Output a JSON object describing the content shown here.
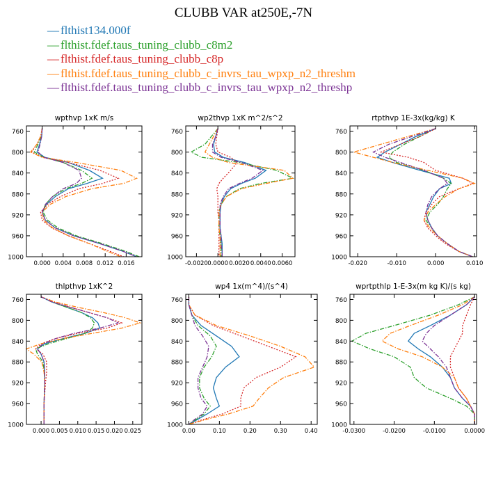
{
  "title": "CLUBB VAR at250E,-7N",
  "legend": [
    {
      "label": "flthist134.000f",
      "color": "#1f77b4",
      "dash": "solid"
    },
    {
      "label": "flthist.fdef.taus_tuning_clubb_c8m2",
      "color": "#2ca02c",
      "dash": "dashdot"
    },
    {
      "label": "flthist.fdef.taus_tuning_clubb_c8p",
      "color": "#d62728",
      "dash": "dot"
    },
    {
      "label": "flthist.fdef.taus_tuning_clubb_c_invrs_tau_wpxp_n2_threshm",
      "color": "#ff7f0e",
      "dash": "dashdot"
    },
    {
      "label": "flthist.fdef.taus_tuning_clubb_c_invrs_tau_wpxp_n2_threshp",
      "color": "#7b3294",
      "dash": "dashdot"
    }
  ],
  "chart_data": [
    {
      "type": "line",
      "title": "wpthvp   1xK m/s",
      "xlim": [
        -0.003,
        0.019
      ],
      "xticks": [
        0.0,
        0.004,
        0.008,
        0.012,
        0.016
      ],
      "xticklabels": [
        "0.000",
        "0.004",
        "0.008",
        "0.012",
        "0.016"
      ],
      "ylim": [
        1000,
        750
      ],
      "yticks": [
        760,
        800,
        840,
        880,
        920,
        960,
        1000
      ],
      "y": [
        755,
        770,
        785,
        800,
        810,
        820,
        835,
        850,
        860,
        870,
        885,
        900,
        915,
        930,
        945,
        960,
        975,
        990,
        1000
      ],
      "series": [
        {
          "values": [
            0.0,
            -0.0001,
            -0.0005,
            -0.001,
            0.0005,
            0.005,
            0.009,
            0.0115,
            0.0085,
            0.005,
            0.0025,
            0.0008,
            0.0,
            0.0006,
            0.0025,
            0.006,
            0.011,
            0.0155,
            0.018
          ]
        },
        {
          "values": [
            0.0,
            -0.0002,
            -0.0008,
            -0.0015,
            0.0003,
            0.004,
            0.0075,
            0.0095,
            0.0075,
            0.0045,
            0.002,
            0.0006,
            0.0002,
            0.001,
            0.003,
            0.0065,
            0.0115,
            0.016,
            0.0185
          ]
        },
        {
          "values": [
            0.0,
            -0.0003,
            -0.001,
            -0.002,
            0.0,
            0.005,
            0.011,
            0.0145,
            0.0115,
            0.007,
            0.0035,
            0.001,
            -0.0003,
            0.0,
            0.0018,
            0.005,
            0.009,
            0.013,
            0.0155
          ]
        },
        {
          "values": [
            0.0,
            -0.0003,
            -0.001,
            -0.0022,
            0.0,
            0.0065,
            0.015,
            0.018,
            0.0155,
            0.0095,
            0.0045,
            0.0015,
            0.0,
            0.0003,
            0.002,
            0.005,
            0.009,
            0.0125,
            0.015
          ]
        },
        {
          "values": [
            0.0,
            -0.0001,
            -0.0004,
            -0.0008,
            0.0003,
            0.004,
            0.007,
            0.0075,
            0.0065,
            0.004,
            0.002,
            0.0006,
            0.0,
            0.0006,
            0.0025,
            0.006,
            0.011,
            0.0155,
            0.018
          ]
        }
      ]
    },
    {
      "type": "line",
      "title": "wp2thvp   1xK m^2/s^2",
      "xlim": [
        -0.003,
        0.0072
      ],
      "xticks": [
        -0.002,
        0.0,
        0.002,
        0.004,
        0.006
      ],
      "xticklabels": [
        "-0.0020",
        "0.0000",
        "0.0020",
        "0.0040",
        "0.0060"
      ],
      "ylim": [
        1000,
        750
      ],
      "yticks": [
        760,
        800,
        840,
        880,
        920,
        960,
        1000
      ],
      "y": [
        755,
        770,
        785,
        800,
        810,
        820,
        835,
        850,
        860,
        870,
        885,
        900,
        915,
        930,
        945,
        960,
        975,
        990,
        1000
      ],
      "series": [
        {
          "values": [
            0.0,
            -0.0002,
            -0.0004,
            -0.0003,
            0.0005,
            0.0025,
            0.0045,
            0.0035,
            0.0022,
            0.0012,
            0.0006,
            0.0003,
            0.0002,
            0.0002,
            0.0002,
            0.0003,
            0.0004,
            0.0004,
            0.0004
          ]
        },
        {
          "values": [
            0.0,
            -0.0006,
            -0.0012,
            -0.0025,
            -0.0015,
            0.002,
            0.0055,
            0.007,
            0.004,
            0.002,
            0.0008,
            0.0003,
            0.0001,
            0.0001,
            0.0001,
            0.0002,
            0.0003,
            0.0003,
            0.0003
          ]
        },
        {
          "values": [
            0.0,
            -0.0001,
            -0.0002,
            0.0,
            0.0012,
            0.0018,
            0.0012,
            0.0005,
            0.0001,
            -0.0001,
            0.0,
            0.0,
            0.0,
            0.0001,
            0.0001,
            0.0001,
            0.0001,
            0.0001,
            0.0001
          ]
        },
        {
          "values": [
            0.0,
            -0.0004,
            -0.0008,
            -0.0012,
            -0.0005,
            0.001,
            0.0062,
            0.007,
            0.0045,
            0.0022,
            0.0008,
            0.0003,
            0.0001,
            0.0001,
            0.0001,
            0.0002,
            0.0002,
            0.0002,
            0.0002
          ]
        },
        {
          "values": [
            0.0,
            -0.0002,
            -0.0005,
            -0.0005,
            0.0003,
            0.0022,
            0.0042,
            0.0032,
            0.002,
            0.001,
            0.0005,
            0.0002,
            0.0002,
            0.0002,
            0.0002,
            0.0003,
            0.0003,
            0.0004,
            0.0004
          ]
        }
      ]
    },
    {
      "type": "line",
      "title": "rtpthvp   1E-3x(kg/kg) K",
      "xlim": [
        -0.022,
        0.0105
      ],
      "xticks": [
        -0.02,
        -0.01,
        0.0,
        0.01
      ],
      "xticklabels": [
        "-0.020",
        "-0.010",
        "0.000",
        "0.010"
      ],
      "ylim": [
        1000,
        750
      ],
      "yticks": [
        760,
        800,
        840,
        880,
        920,
        960,
        1000
      ],
      "y": [
        755,
        770,
        785,
        800,
        810,
        820,
        835,
        850,
        860,
        870,
        885,
        900,
        915,
        930,
        945,
        960,
        975,
        990,
        1000
      ],
      "series": [
        {
          "values": [
            0.0,
            -0.005,
            -0.009,
            -0.013,
            -0.015,
            -0.011,
            -0.004,
            0.0035,
            0.004,
            0.001,
            -0.0005,
            -0.0015,
            -0.0025,
            -0.002,
            -0.001,
            0.0005,
            0.003,
            0.006,
            0.0095
          ]
        },
        {
          "values": [
            0.0,
            -0.004,
            -0.008,
            -0.011,
            -0.012,
            -0.01,
            -0.003,
            0.002,
            0.004,
            0.003,
            0.002,
            0.0005,
            -0.0015,
            -0.0025,
            -0.001,
            0.0005,
            0.003,
            0.006,
            0.0095
          ]
        },
        {
          "values": [
            0.0,
            -0.004,
            -0.009,
            -0.014,
            -0.007,
            -0.003,
            0.0,
            0.007,
            0.0095,
            0.006,
            0.001,
            -0.001,
            -0.0025,
            -0.003,
            -0.002,
            0.0,
            0.0025,
            0.006,
            0.0095
          ]
        },
        {
          "values": [
            0.0,
            -0.007,
            -0.014,
            -0.021,
            -0.016,
            -0.011,
            -0.002,
            0.007,
            0.01,
            0.006,
            0.0025,
            0.0,
            -0.002,
            -0.003,
            -0.0015,
            0.0005,
            0.003,
            0.006,
            0.0095
          ]
        },
        {
          "values": [
            0.0,
            -0.006,
            -0.012,
            -0.016,
            -0.013,
            -0.009,
            -0.003,
            0.002,
            0.003,
            0.001,
            -0.001,
            -0.002,
            -0.0025,
            -0.002,
            -0.001,
            0.0005,
            0.003,
            0.006,
            0.0095
          ]
        }
      ]
    },
    {
      "type": "line",
      "title": "thlpthvp   1xK^2",
      "xlim": [
        -0.004,
        0.0275
      ],
      "xticks": [
        0.0,
        0.005,
        0.01,
        0.015,
        0.02,
        0.025
      ],
      "xticklabels": [
        "0.000",
        "0.005",
        "0.010",
        "0.015",
        "0.020",
        "0.025"
      ],
      "ylim": [
        1000,
        750
      ],
      "yticks": [
        760,
        800,
        840,
        880,
        920,
        960,
        1000
      ],
      "y": [
        755,
        765,
        775,
        785,
        795,
        805,
        815,
        825,
        835,
        845,
        855,
        865,
        880,
        900,
        920,
        940,
        960,
        980,
        1000
      ],
      "series": [
        {
          "values": [
            0.0,
            0.003,
            0.007,
            0.011,
            0.014,
            0.0155,
            0.016,
            0.012,
            0.006,
            0.001,
            -0.001,
            0.0,
            0.0008,
            0.001,
            0.001,
            0.0009,
            0.0008,
            0.0008,
            0.0008
          ]
        },
        {
          "values": [
            0.0,
            0.003,
            0.007,
            0.011,
            0.0135,
            0.0145,
            0.014,
            0.012,
            0.007,
            0.002,
            -0.0015,
            -0.001,
            0.0005,
            0.0009,
            0.001,
            0.0009,
            0.0008,
            0.0008,
            0.0008
          ]
        },
        {
          "values": [
            0.0,
            0.0035,
            0.008,
            0.013,
            0.018,
            0.022,
            0.018,
            0.01,
            0.004,
            0.0,
            -0.0015,
            0.0005,
            0.0015,
            0.0015,
            0.0012,
            0.001,
            0.0008,
            0.0008,
            0.0008
          ]
        },
        {
          "values": [
            0.0,
            0.004,
            0.01,
            0.017,
            0.023,
            0.027,
            0.022,
            0.014,
            0.006,
            0.0,
            -0.004,
            -0.002,
            0.0002,
            0.0008,
            0.001,
            0.0009,
            0.0008,
            0.0008,
            0.0008
          ]
        },
        {
          "values": [
            0.0,
            0.003,
            0.008,
            0.013,
            0.018,
            0.021,
            0.016,
            0.009,
            0.004,
            0.0005,
            -0.001,
            0.0,
            0.0008,
            0.001,
            0.001,
            0.0009,
            0.0008,
            0.0008,
            0.0008
          ]
        }
      ]
    },
    {
      "type": "line",
      "title": "wp4   1x(m^4)/(s^4)",
      "xlim": [
        -0.01,
        0.42
      ],
      "xticks": [
        0.0,
        0.1,
        0.2,
        0.3,
        0.4
      ],
      "xticklabels": [
        "0.00",
        "0.10",
        "0.20",
        "0.30",
        "0.40"
      ],
      "ylim": [
        1000,
        750
      ],
      "yticks": [
        760,
        800,
        840,
        880,
        920,
        960,
        1000
      ],
      "y": [
        755,
        770,
        790,
        810,
        830,
        850,
        870,
        890,
        910,
        930,
        950,
        965,
        980,
        990,
        1000
      ],
      "series": [
        {
          "values": [
            0.0,
            0.0,
            0.01,
            0.04,
            0.09,
            0.14,
            0.165,
            0.12,
            0.09,
            0.08,
            0.09,
            0.1,
            0.06,
            0.03,
            0.0
          ]
        },
        {
          "values": [
            0.0,
            0.0,
            0.01,
            0.03,
            0.07,
            0.09,
            0.075,
            0.05,
            0.035,
            0.035,
            0.05,
            0.07,
            0.05,
            0.025,
            0.0
          ]
        },
        {
          "values": [
            0.0,
            0.0,
            0.02,
            0.08,
            0.17,
            0.26,
            0.35,
            0.3,
            0.22,
            0.18,
            0.17,
            0.17,
            0.11,
            0.05,
            0.0
          ]
        },
        {
          "values": [
            0.0,
            0.0,
            0.02,
            0.09,
            0.2,
            0.3,
            0.38,
            0.41,
            0.31,
            0.26,
            0.23,
            0.21,
            0.13,
            0.06,
            0.0
          ]
        },
        {
          "values": [
            0.0,
            0.0,
            0.01,
            0.02,
            0.045,
            0.065,
            0.06,
            0.045,
            0.03,
            0.03,
            0.04,
            0.06,
            0.045,
            0.02,
            0.0
          ]
        }
      ]
    },
    {
      "type": "line",
      "title": "wprtpthlp   1-E-3x(m kg K)/(s kg)",
      "xlim": [
        -0.031,
        0.0005
      ],
      "xticks": [
        -0.03,
        -0.02,
        -0.01,
        0.0
      ],
      "xticklabels": [
        "-0.0300",
        "-0.0200",
        "-0.0100",
        "0.0000"
      ],
      "ylim": [
        1000,
        750
      ],
      "yticks": [
        760,
        800,
        840,
        880,
        920,
        960,
        1000
      ],
      "y": [
        755,
        770,
        790,
        810,
        825,
        840,
        855,
        870,
        890,
        910,
        930,
        950,
        965,
        980,
        1000
      ],
      "series": [
        {
          "values": [
            0.0,
            -0.002,
            -0.006,
            -0.011,
            -0.015,
            -0.0165,
            -0.014,
            -0.011,
            -0.008,
            -0.006,
            -0.005,
            -0.003,
            -0.001,
            0.0,
            0.0
          ]
        },
        {
          "values": [
            0.0,
            -0.004,
            -0.011,
            -0.02,
            -0.027,
            -0.0305,
            -0.026,
            -0.02,
            -0.016,
            -0.015,
            -0.012,
            -0.006,
            -0.002,
            0.0,
            0.0
          ]
        },
        {
          "values": [
            0.0,
            -0.001,
            -0.002,
            -0.003,
            -0.003,
            -0.004,
            -0.005,
            -0.006,
            -0.006,
            -0.005,
            -0.004,
            -0.002,
            -0.001,
            0.0,
            0.0
          ]
        },
        {
          "values": [
            0.0,
            -0.003,
            -0.009,
            -0.016,
            -0.021,
            -0.023,
            -0.019,
            -0.013,
            -0.008,
            -0.005,
            -0.004,
            -0.002,
            -0.001,
            0.0,
            0.0
          ]
        },
        {
          "values": [
            0.0,
            -0.002,
            -0.006,
            -0.01,
            -0.012,
            -0.013,
            -0.011,
            -0.009,
            -0.007,
            -0.006,
            -0.005,
            -0.003,
            -0.001,
            0.0,
            0.0
          ]
        }
      ]
    }
  ]
}
